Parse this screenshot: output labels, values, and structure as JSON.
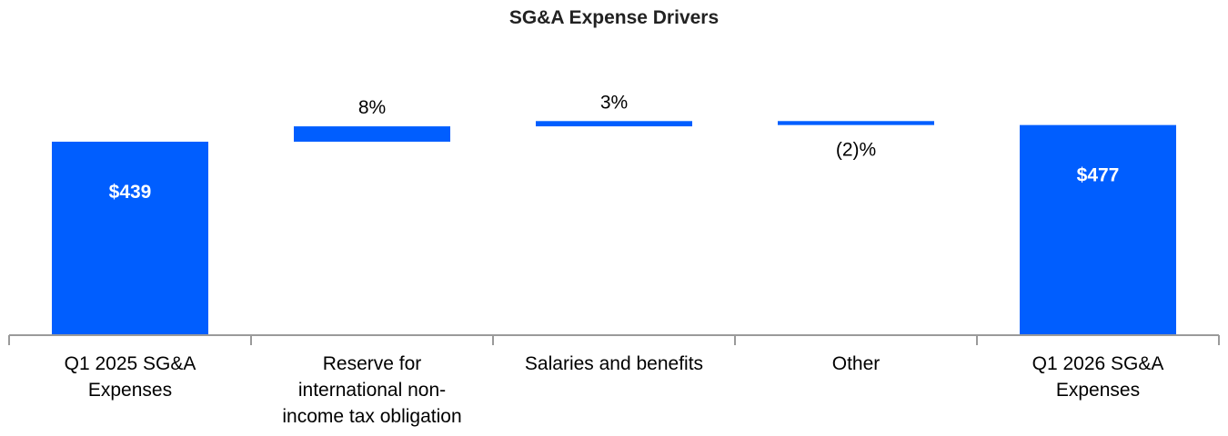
{
  "chart_data": {
    "type": "waterfall",
    "title": "SG&A Expense Drivers",
    "xlabel": "",
    "ylabel": "",
    "units": "$",
    "categories": [
      "Q1 2025 SG&A Expenses",
      "Reserve for international non-income tax obligation",
      "Salaries and benefits",
      "Other",
      "Q1 2026 SG&A Expenses"
    ],
    "category_lines": [
      [
        "Q1 2025 SG&A",
        "Expenses"
      ],
      [
        "Reserve for",
        "international non-",
        "income tax obligation"
      ],
      [
        "Salaries and benefits"
      ],
      [
        "Other"
      ],
      [
        "Q1 2026 SG&A",
        "Expenses"
      ]
    ],
    "bars": [
      {
        "kind": "total",
        "value": 439,
        "label": "$439"
      },
      {
        "kind": "delta",
        "value": 35,
        "label": "8%"
      },
      {
        "kind": "delta",
        "value": 12,
        "label": "3%"
      },
      {
        "kind": "delta",
        "value": -9,
        "label": "(2)%"
      },
      {
        "kind": "total",
        "value": 477,
        "label": "$477"
      }
    ],
    "ylim": [
      0,
      520
    ],
    "grid": false,
    "legend": "none",
    "colors": {
      "bar": "#005eff",
      "axis": "#9a9a9a",
      "text": "#000000",
      "inner_label": "#ffffff",
      "title": "#222222"
    }
  }
}
